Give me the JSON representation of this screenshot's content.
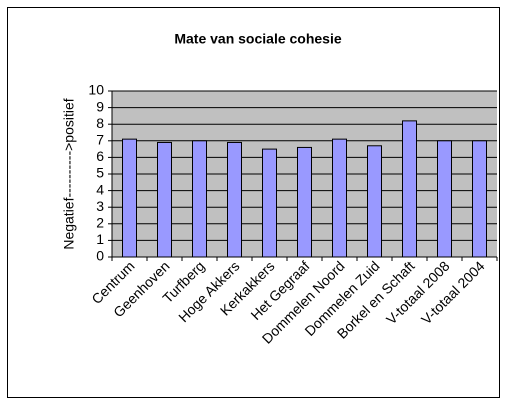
{
  "chart_data": {
    "type": "bar",
    "title": "Mate van sociale cohesie",
    "y_label": "Negatief---------->positief",
    "categories": [
      "Centrum",
      "Geenhoven",
      "Turfberg",
      "Hoge Akkers",
      "Kerkakkers",
      "Het Gegraaf",
      "Dommelen Noord",
      "Dommelen Zuid",
      "Borkel en Schaft",
      "V-totaal 2008",
      "V-totaal 2004"
    ],
    "values": [
      7.1,
      6.9,
      7.0,
      6.9,
      6.5,
      6.6,
      7.1,
      6.7,
      8.2,
      7.0,
      7.0
    ],
    "color": "#9999ff",
    "ylim": [
      0,
      10
    ],
    "yticks": [
      0,
      1,
      2,
      3,
      4,
      5,
      6,
      7,
      8,
      9,
      10
    ],
    "grid": true
  }
}
